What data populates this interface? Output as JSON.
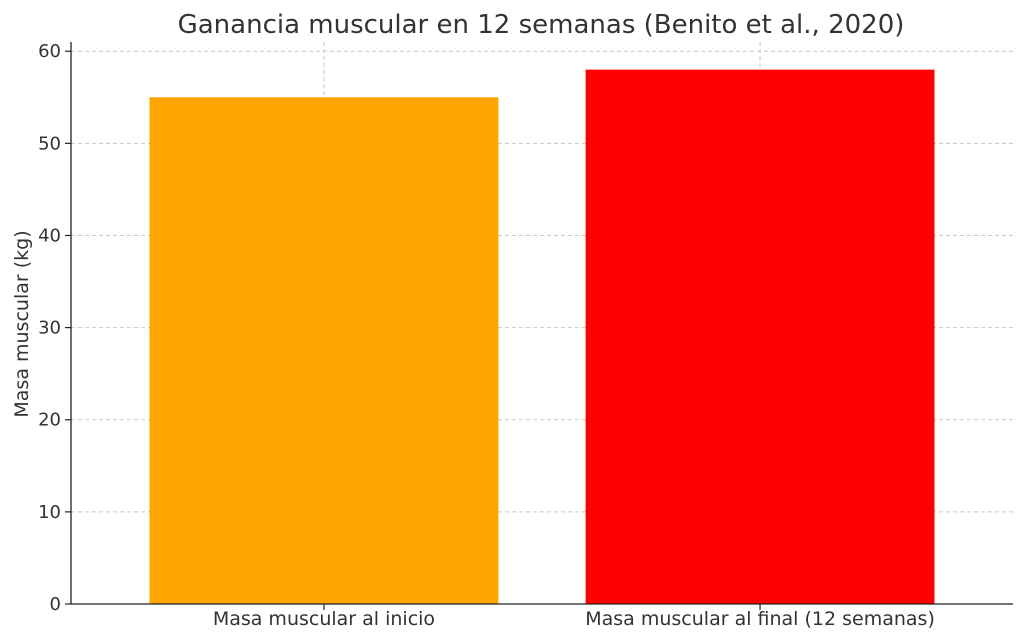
{
  "chart_data": {
    "type": "bar",
    "title": "Ganancia muscular en 12 semanas (Benito et al., 2020)",
    "xlabel": "",
    "ylabel": "Masa muscular (kg)",
    "categories": [
      "Masa muscular al inicio",
      "Masa muscular al final (12 semanas)"
    ],
    "values": [
      55,
      58
    ],
    "colors": [
      "#FFA500",
      "#FF0000"
    ],
    "ylim": [
      0,
      61
    ],
    "yticks": [
      0,
      10,
      20,
      30,
      40,
      50,
      60
    ],
    "grid": true
  }
}
